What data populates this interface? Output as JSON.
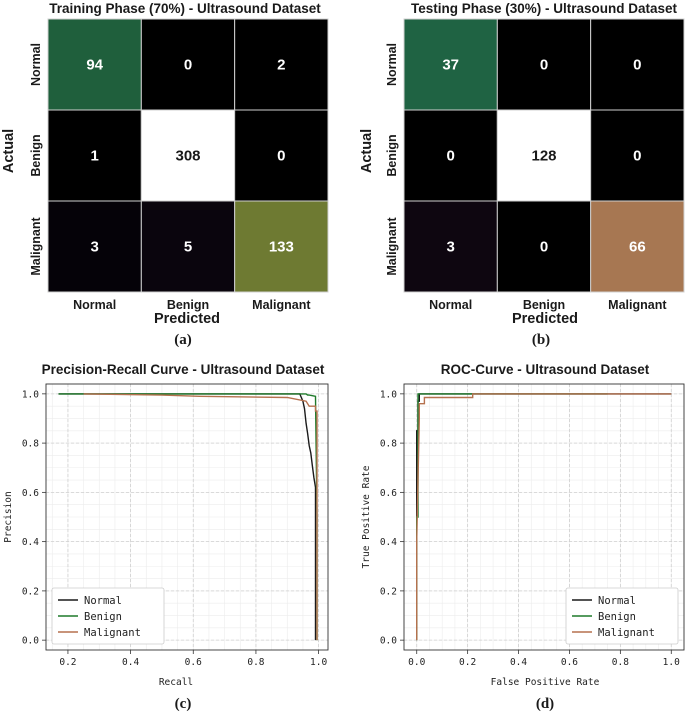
{
  "colors": {
    "normal": "#1a1a1a",
    "benign": "#1f7a2a",
    "malignant": "#b5714e",
    "cm_grid": "#d0d0d0"
  },
  "labels": {
    "a": "(a)",
    "b": "(b)",
    "c": "(c)",
    "d": "(d)"
  },
  "chart_data": [
    {
      "type": "heatmap",
      "title": "Training Phase (70%) - Ultrasound Dataset",
      "xlabel": "Predicted",
      "ylabel": "Actual",
      "x_categories": [
        "Normal",
        "Benign",
        "Malignant"
      ],
      "y_categories": [
        "Normal",
        "Benign",
        "Malignant"
      ],
      "values": [
        [
          94,
          0,
          2
        ],
        [
          1,
          308,
          0
        ],
        [
          3,
          5,
          133
        ]
      ],
      "cell_colors": [
        [
          "#1f5f3c",
          "#000000",
          "#000000"
        ],
        [
          "#000000",
          "#ffffff",
          "#000000"
        ],
        [
          "#050208",
          "#0a050d",
          "#6e7a32"
        ]
      ]
    },
    {
      "type": "heatmap",
      "title": "Testing Phase (30%) - Ultrasound Dataset",
      "xlabel": "Predicted",
      "ylabel": "Actual",
      "x_categories": [
        "Normal",
        "Benign",
        "Malignant"
      ],
      "y_categories": [
        "Normal",
        "Benign",
        "Malignant"
      ],
      "values": [
        [
          37,
          0,
          0
        ],
        [
          0,
          128,
          0
        ],
        [
          3,
          0,
          66
        ]
      ],
      "cell_colors": [
        [
          "#1f6343",
          "#000000",
          "#000000"
        ],
        [
          "#000000",
          "#ffffff",
          "#000000"
        ],
        [
          "#0e0610",
          "#000000",
          "#a77752"
        ]
      ]
    },
    {
      "type": "line",
      "title": "Precision-Recall Curve - Ultrasound Dataset",
      "xlabel": "Recall",
      "ylabel": "Precision",
      "xlim": [
        0.13,
        1.03
      ],
      "ylim": [
        -0.04,
        1.04
      ],
      "xticks": [
        "0.2",
        "0.4",
        "0.6",
        "0.8",
        "1.0"
      ],
      "yticks": [
        "0.0",
        "0.2",
        "0.4",
        "0.6",
        "0.8",
        "1.0"
      ],
      "legend": "lower-left",
      "series": [
        {
          "name": "Normal",
          "x": [
            0.17,
            0.94,
            0.95,
            0.955,
            0.96,
            0.965,
            0.97,
            0.975,
            0.98,
            0.985,
            0.99,
            0.99
          ],
          "y": [
            1.0,
            1.0,
            0.97,
            0.94,
            0.88,
            0.84,
            0.79,
            0.76,
            0.71,
            0.66,
            0.62,
            0.0
          ]
        },
        {
          "name": "Benign",
          "x": [
            0.17,
            0.96,
            0.965,
            0.97,
            0.99,
            0.995,
            0.995
          ],
          "y": [
            1.0,
            1.0,
            0.995,
            0.995,
            0.99,
            0.5,
            0.0
          ]
        },
        {
          "name": "Malignant",
          "x": [
            0.25,
            0.5,
            0.62,
            0.9,
            0.96,
            0.97,
            0.99,
            0.99,
            0.995,
            0.995
          ],
          "y": [
            1.0,
            0.995,
            0.99,
            0.985,
            0.97,
            0.95,
            0.95,
            0.93,
            0.93,
            0.0
          ]
        }
      ]
    },
    {
      "type": "line",
      "title": "ROC-Curve - Ultrasound Dataset",
      "xlabel": "False Positive Rate",
      "ylabel": "True Positive Rate",
      "xlim": [
        -0.05,
        1.05
      ],
      "ylim": [
        -0.04,
        1.04
      ],
      "xticks": [
        "0.0",
        "0.2",
        "0.4",
        "0.6",
        "0.8",
        "1.0"
      ],
      "yticks": [
        "0.0",
        "0.2",
        "0.4",
        "0.6",
        "0.8",
        "1.0"
      ],
      "legend": "lower-right",
      "series": [
        {
          "name": "Normal",
          "x": [
            0.0,
            0.0,
            0.005,
            0.005,
            0.01,
            0.01,
            1.0
          ],
          "y": [
            0.0,
            0.85,
            0.85,
            0.97,
            0.97,
            1.0,
            1.0
          ]
        },
        {
          "name": "Benign",
          "x": [
            0.0,
            0.0,
            0.005,
            0.005,
            0.75
          ],
          "y": [
            0.0,
            0.5,
            0.5,
            1.0,
            1.0
          ]
        },
        {
          "name": "Malignant",
          "x": [
            0.0,
            0.0,
            0.01,
            0.01,
            0.03,
            0.03,
            0.22,
            0.22,
            1.0
          ],
          "y": [
            0.0,
            0.4,
            0.9,
            0.96,
            0.96,
            0.985,
            0.985,
            1.0,
            1.0
          ]
        }
      ]
    }
  ]
}
